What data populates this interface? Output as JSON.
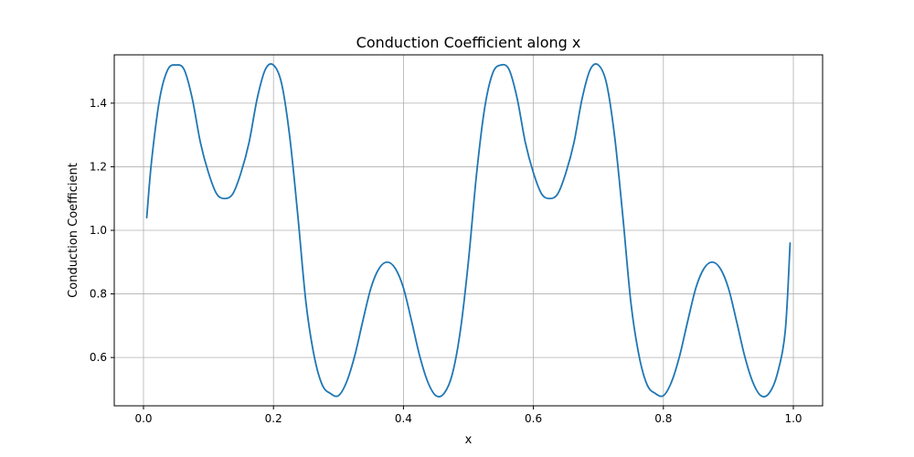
{
  "chart_data": {
    "type": "line",
    "title": "Conduction Coefficient along x",
    "xlabel": "x",
    "ylabel": "Conduction Coefficient",
    "xlim": [
      -0.045,
      1.045
    ],
    "ylim": [
      0.448,
      1.552
    ],
    "xticks": [
      0.0,
      0.2,
      0.4,
      0.6,
      0.8,
      1.0
    ],
    "xtick_labels": [
      "0.0",
      "0.2",
      "0.4",
      "0.6",
      "0.8",
      "1.0"
    ],
    "yticks": [
      0.6,
      0.8,
      1.0,
      1.2,
      1.4
    ],
    "ytick_labels": [
      "0.6",
      "0.8",
      "1.0",
      "1.2",
      "1.4"
    ],
    "grid": true,
    "line_color": "#1f77b4",
    "series": [
      {
        "x": [
          0.005,
          0.0125,
          0.025,
          0.0375,
          0.05,
          0.0625,
          0.075,
          0.0875,
          0.1,
          0.1125,
          0.125,
          0.1375,
          0.15,
          0.1625,
          0.175,
          0.1875,
          0.2,
          0.2125,
          0.225,
          0.2375,
          0.25,
          0.2625,
          0.275,
          0.2875,
          0.3,
          0.3125,
          0.325,
          0.3375,
          0.35,
          0.3625,
          0.375,
          0.3875,
          0.4,
          0.4125,
          0.425,
          0.4375,
          0.45,
          0.4625,
          0.475,
          0.4875,
          0.5,
          0.5125,
          0.525,
          0.5375,
          0.55,
          0.5625,
          0.575,
          0.5875,
          0.6,
          0.6125,
          0.625,
          0.6375,
          0.65,
          0.6625,
          0.675,
          0.6875,
          0.7,
          0.7125,
          0.725,
          0.7375,
          0.75,
          0.7625,
          0.775,
          0.7875,
          0.8,
          0.8125,
          0.825,
          0.8375,
          0.85,
          0.8625,
          0.875,
          0.8875,
          0.9,
          0.9125,
          0.925,
          0.9375,
          0.95,
          0.9625,
          0.975,
          0.9875,
          0.995
        ],
        "y": [
          1.04,
          1.219,
          1.415,
          1.506,
          1.52,
          1.506,
          1.415,
          1.277,
          1.181,
          1.115,
          1.1,
          1.115,
          1.181,
          1.277,
          1.415,
          1.506,
          1.52,
          1.462,
          1.295,
          1.046,
          0.773,
          0.606,
          0.514,
          0.487,
          0.48,
          0.523,
          0.605,
          0.715,
          0.819,
          0.88,
          0.9,
          0.88,
          0.819,
          0.715,
          0.605,
          0.523,
          0.48,
          0.487,
          0.546,
          0.683,
          0.903,
          1.177,
          1.385,
          1.495,
          1.52,
          1.506,
          1.415,
          1.277,
          1.181,
          1.115,
          1.1,
          1.115,
          1.181,
          1.277,
          1.415,
          1.506,
          1.52,
          1.462,
          1.295,
          1.046,
          0.773,
          0.606,
          0.514,
          0.487,
          0.48,
          0.523,
          0.605,
          0.715,
          0.819,
          0.88,
          0.9,
          0.88,
          0.819,
          0.715,
          0.605,
          0.523,
          0.48,
          0.487,
          0.546,
          0.683,
          0.96
        ]
      }
    ]
  }
}
